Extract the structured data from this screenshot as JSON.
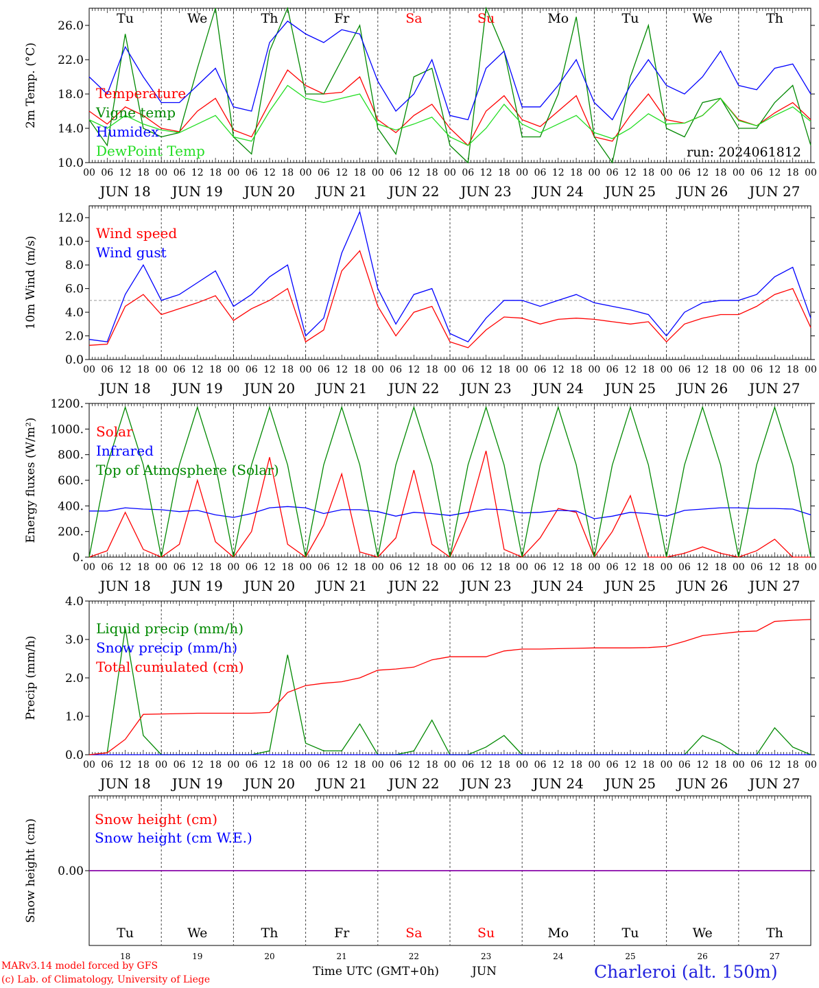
{
  "footer": {
    "model": "MARv3.14 model forced by GFS",
    "copyright": "(c) Lab. of Climatology, University of Liege",
    "time_label": "Time UTC (GMT+0h)",
    "month": "JUN",
    "station": "Charleroi (alt. 150m)"
  },
  "run_label": "run: 2024061812",
  "colors": {
    "red": "#ff0000",
    "darkgreen": "#008800",
    "blue": "#0000ff",
    "lightgreen": "#22dd22",
    "purple": "#8800aa",
    "darkgray": "#999999"
  },
  "days": {
    "abbr": [
      "Tu",
      "We",
      "Th",
      "Fr",
      "Sa",
      "Su",
      "Mo",
      "Tu",
      "We",
      "Th"
    ],
    "dates": [
      "JUN 18",
      "JUN 19",
      "JUN 20",
      "JUN 21",
      "JUN 22",
      "JUN 23",
      "JUN 24",
      "JUN 25",
      "JUN 26",
      "JUN 27"
    ],
    "numbers": [
      "18",
      "19",
      "20",
      "21",
      "22",
      "23",
      "24",
      "25",
      "26",
      "27"
    ],
    "weekend": [
      false,
      false,
      false,
      false,
      true,
      true,
      false,
      false,
      false,
      false
    ]
  },
  "hour_ticks": [
    "00",
    "06",
    "12",
    "18"
  ],
  "chart_data": [
    {
      "type": "line",
      "ylabel": "2m Temp. (°C)",
      "ylim": [
        10,
        28
      ],
      "yticks": [
        "10.0",
        "14.0",
        "18.0",
        "22.0",
        "26.0"
      ],
      "xlim": [
        "2024-06-18 00",
        "2024-06-28 00"
      ],
      "step_hours": 6,
      "grid": true,
      "legend_position": "top-left",
      "series": [
        {
          "name": "Temperature",
          "color": "#ff0000",
          "values": [
            16,
            14.5,
            16.5,
            15.5,
            14,
            13.6,
            16,
            17.5,
            13.8,
            13,
            17,
            20.8,
            19,
            18,
            18.2,
            20,
            15,
            13.5,
            15.5,
            16.8,
            14,
            12,
            16,
            17.8,
            15,
            14.2,
            16,
            17.8,
            13,
            12.5,
            15.5,
            18,
            15,
            14.6,
            15.5,
            17.5,
            15,
            14.3,
            15.8,
            17,
            15
          ]
        },
        {
          "name": "Vigne temp",
          "color": "#008800",
          "values": [
            15,
            12,
            25,
            14,
            13,
            13.5,
            21,
            29,
            13,
            11,
            23,
            29,
            18,
            18,
            22,
            26,
            14,
            11,
            20,
            21,
            12,
            10,
            28,
            23,
            13,
            13,
            18,
            27,
            13,
            10,
            20,
            26,
            14,
            13,
            17,
            17.5,
            14,
            14,
            17,
            19,
            12
          ]
        },
        {
          "name": "Humidex",
          "color": "#0000ff",
          "values": [
            20,
            18,
            23.5,
            20,
            17,
            17,
            19,
            21,
            16.5,
            16,
            24,
            26.5,
            25,
            24,
            25.5,
            25,
            19.5,
            16,
            18,
            22,
            15.5,
            15,
            21,
            23,
            16.5,
            16.5,
            19,
            22,
            17,
            15,
            19,
            22,
            19,
            18,
            20,
            23,
            19,
            18.5,
            21,
            21.5,
            18
          ]
        },
        {
          "name": "DewPoint Temp",
          "color": "#22dd22",
          "values": [
            15,
            14,
            15.5,
            14.5,
            13.8,
            13.5,
            14.5,
            15.5,
            13,
            12.5,
            16,
            19,
            17.5,
            17,
            17.5,
            18,
            14.5,
            13.8,
            14.5,
            15.3,
            13,
            12,
            14,
            16.8,
            14.5,
            13.5,
            14.5,
            15.5,
            13.5,
            12.8,
            14,
            15.7,
            14.5,
            14.6,
            15.5,
            17.5,
            14.9,
            14.3,
            15.5,
            16.5,
            14.8
          ]
        }
      ]
    },
    {
      "type": "line",
      "ylabel": "10m Wind (m/s)",
      "ylim": [
        0,
        13
      ],
      "yticks": [
        "0.0",
        "2.0",
        "4.0",
        "6.0",
        "8.0",
        "10.0",
        "12.0"
      ],
      "reference_line": 5.0,
      "xlim": [
        "2024-06-18 00",
        "2024-06-28 00"
      ],
      "step_hours": 6,
      "grid": true,
      "legend_position": "top-left",
      "series": [
        {
          "name": "Wind speed",
          "color": "#ff0000",
          "values": [
            1.2,
            1.3,
            4.5,
            5.5,
            3.8,
            4.3,
            4.8,
            5.4,
            3.3,
            4.3,
            5,
            6,
            1.5,
            2.5,
            7.5,
            9.2,
            4.5,
            2,
            4,
            4.5,
            1.5,
            1,
            2.5,
            3.6,
            3.5,
            3,
            3.4,
            3.5,
            3.4,
            3.2,
            3,
            3.2,
            1.5,
            3,
            3.5,
            3.8,
            3.8,
            4.5,
            5.5,
            6,
            2.7
          ]
        },
        {
          "name": "Wind gust",
          "color": "#0000ff",
          "values": [
            1.7,
            1.5,
            5.5,
            8,
            5,
            5.5,
            6.5,
            7.5,
            4.5,
            5.5,
            7,
            8,
            2,
            3.5,
            9,
            12.5,
            6,
            3,
            5.5,
            6,
            2.2,
            1.5,
            3.5,
            5,
            5,
            4.5,
            5,
            5.5,
            4.8,
            4.5,
            4.2,
            3.8,
            2,
            4,
            4.8,
            5,
            5,
            5.5,
            7,
            7.8,
            3.5
          ]
        }
      ]
    },
    {
      "type": "line",
      "ylabel": "Energy fluxes (W/m²)",
      "ylim": [
        0,
        1200
      ],
      "yticks": [
        "0.",
        "200.",
        "400.",
        "600.",
        "800.",
        "1000.",
        "1200."
      ],
      "xlim": [
        "2024-06-18 00",
        "2024-06-28 00"
      ],
      "step_hours": 6,
      "grid": true,
      "legend_position": "top-left",
      "series": [
        {
          "name": "Solar",
          "color": "#ff0000",
          "values": [
            0,
            50,
            350,
            60,
            0,
            100,
            600,
            120,
            0,
            200,
            780,
            100,
            0,
            250,
            650,
            40,
            0,
            150,
            680,
            100,
            0,
            320,
            830,
            60,
            0,
            150,
            380,
            350,
            0,
            200,
            480,
            0,
            0,
            30,
            80,
            30,
            0,
            50,
            140,
            0,
            0
          ]
        },
        {
          "name": "Infrared",
          "color": "#0000ff",
          "values": [
            360,
            360,
            385,
            375,
            370,
            355,
            365,
            330,
            310,
            340,
            385,
            395,
            385,
            340,
            370,
            370,
            355,
            320,
            350,
            340,
            325,
            350,
            375,
            370,
            345,
            350,
            365,
            360,
            300,
            320,
            350,
            340,
            320,
            365,
            375,
            385,
            385,
            380,
            380,
            375,
            330
          ]
        },
        {
          "name": "Top of Atmosphere (Solar)",
          "color": "#008800",
          "values": [
            0,
            720,
            1170,
            720,
            0,
            720,
            1170,
            720,
            0,
            720,
            1170,
            720,
            0,
            720,
            1170,
            720,
            0,
            720,
            1170,
            720,
            0,
            720,
            1170,
            720,
            0,
            720,
            1170,
            720,
            0,
            720,
            1170,
            720,
            0,
            720,
            1170,
            720,
            0,
            720,
            1170,
            720,
            0
          ]
        }
      ]
    },
    {
      "type": "line",
      "ylabel": "Precip (mm/h)",
      "ylim": [
        0,
        4
      ],
      "yticks": [
        "0.0",
        "1.0",
        "2.0",
        "3.0",
        "4.0"
      ],
      "xlim": [
        "2024-06-18 00",
        "2024-06-28 00"
      ],
      "step_hours": 6,
      "grid": true,
      "legend_position": "top-left",
      "series": [
        {
          "name": "Liquid precip (mm/h)",
          "color": "#008800",
          "values": [
            0,
            0.05,
            3.3,
            0.5,
            0,
            0,
            0,
            0,
            0,
            0,
            0.1,
            2.6,
            0.3,
            0.1,
            0.1,
            0.8,
            0,
            0,
            0.1,
            0.9,
            0,
            0,
            0.2,
            0.5,
            0,
            0,
            0,
            0,
            0,
            0,
            0,
            0,
            0,
            0,
            0.5,
            0.3,
            0,
            0,
            0.7,
            0.2,
            0
          ]
        },
        {
          "name": "Snow precip (mm/h)",
          "color": "#0000ff",
          "values": [
            0,
            0,
            0,
            0,
            0,
            0,
            0,
            0,
            0,
            0,
            0,
            0,
            0,
            0,
            0,
            0,
            0,
            0,
            0,
            0,
            0,
            0,
            0,
            0,
            0,
            0,
            0,
            0,
            0,
            0,
            0,
            0,
            0,
            0,
            0,
            0,
            0,
            0,
            0,
            0,
            0
          ]
        },
        {
          "name": "Total cumulated (cm)",
          "color": "#ff0000",
          "values": [
            0,
            0.05,
            0.4,
            1.05,
            1.06,
            1.07,
            1.08,
            1.08,
            1.08,
            1.08,
            1.1,
            1.62,
            1.8,
            1.86,
            1.9,
            2.0,
            2.2,
            2.23,
            2.28,
            2.47,
            2.55,
            2.55,
            2.55,
            2.7,
            2.75,
            2.75,
            2.76,
            2.77,
            2.78,
            2.78,
            2.78,
            2.79,
            2.82,
            2.95,
            3.1,
            3.15,
            3.2,
            3.22,
            3.47,
            3.5,
            3.52
          ]
        }
      ]
    },
    {
      "type": "line",
      "ylabel": "Snow height (cm)",
      "ylim": [
        -1,
        1
      ],
      "yticks": [
        "0.00"
      ],
      "xlim": [
        "2024-06-18 00",
        "2024-06-28 00"
      ],
      "step_hours": 6,
      "grid": true,
      "legend_position": "top-left",
      "series": [
        {
          "name": "Snow height (cm)",
          "color": "#ff0000",
          "values": [
            0,
            0,
            0,
            0,
            0,
            0,
            0,
            0,
            0,
            0,
            0,
            0,
            0,
            0,
            0,
            0,
            0,
            0,
            0,
            0,
            0,
            0,
            0,
            0,
            0,
            0,
            0,
            0,
            0,
            0,
            0,
            0,
            0,
            0,
            0,
            0,
            0,
            0,
            0,
            0,
            0
          ]
        },
        {
          "name": "Snow height (cm W.E.)",
          "color": "#0000ff",
          "values": [
            0,
            0,
            0,
            0,
            0,
            0,
            0,
            0,
            0,
            0,
            0,
            0,
            0,
            0,
            0,
            0,
            0,
            0,
            0,
            0,
            0,
            0,
            0,
            0,
            0,
            0,
            0,
            0,
            0,
            0,
            0,
            0,
            0,
            0,
            0,
            0,
            0,
            0,
            0,
            0,
            0
          ]
        }
      ]
    }
  ]
}
